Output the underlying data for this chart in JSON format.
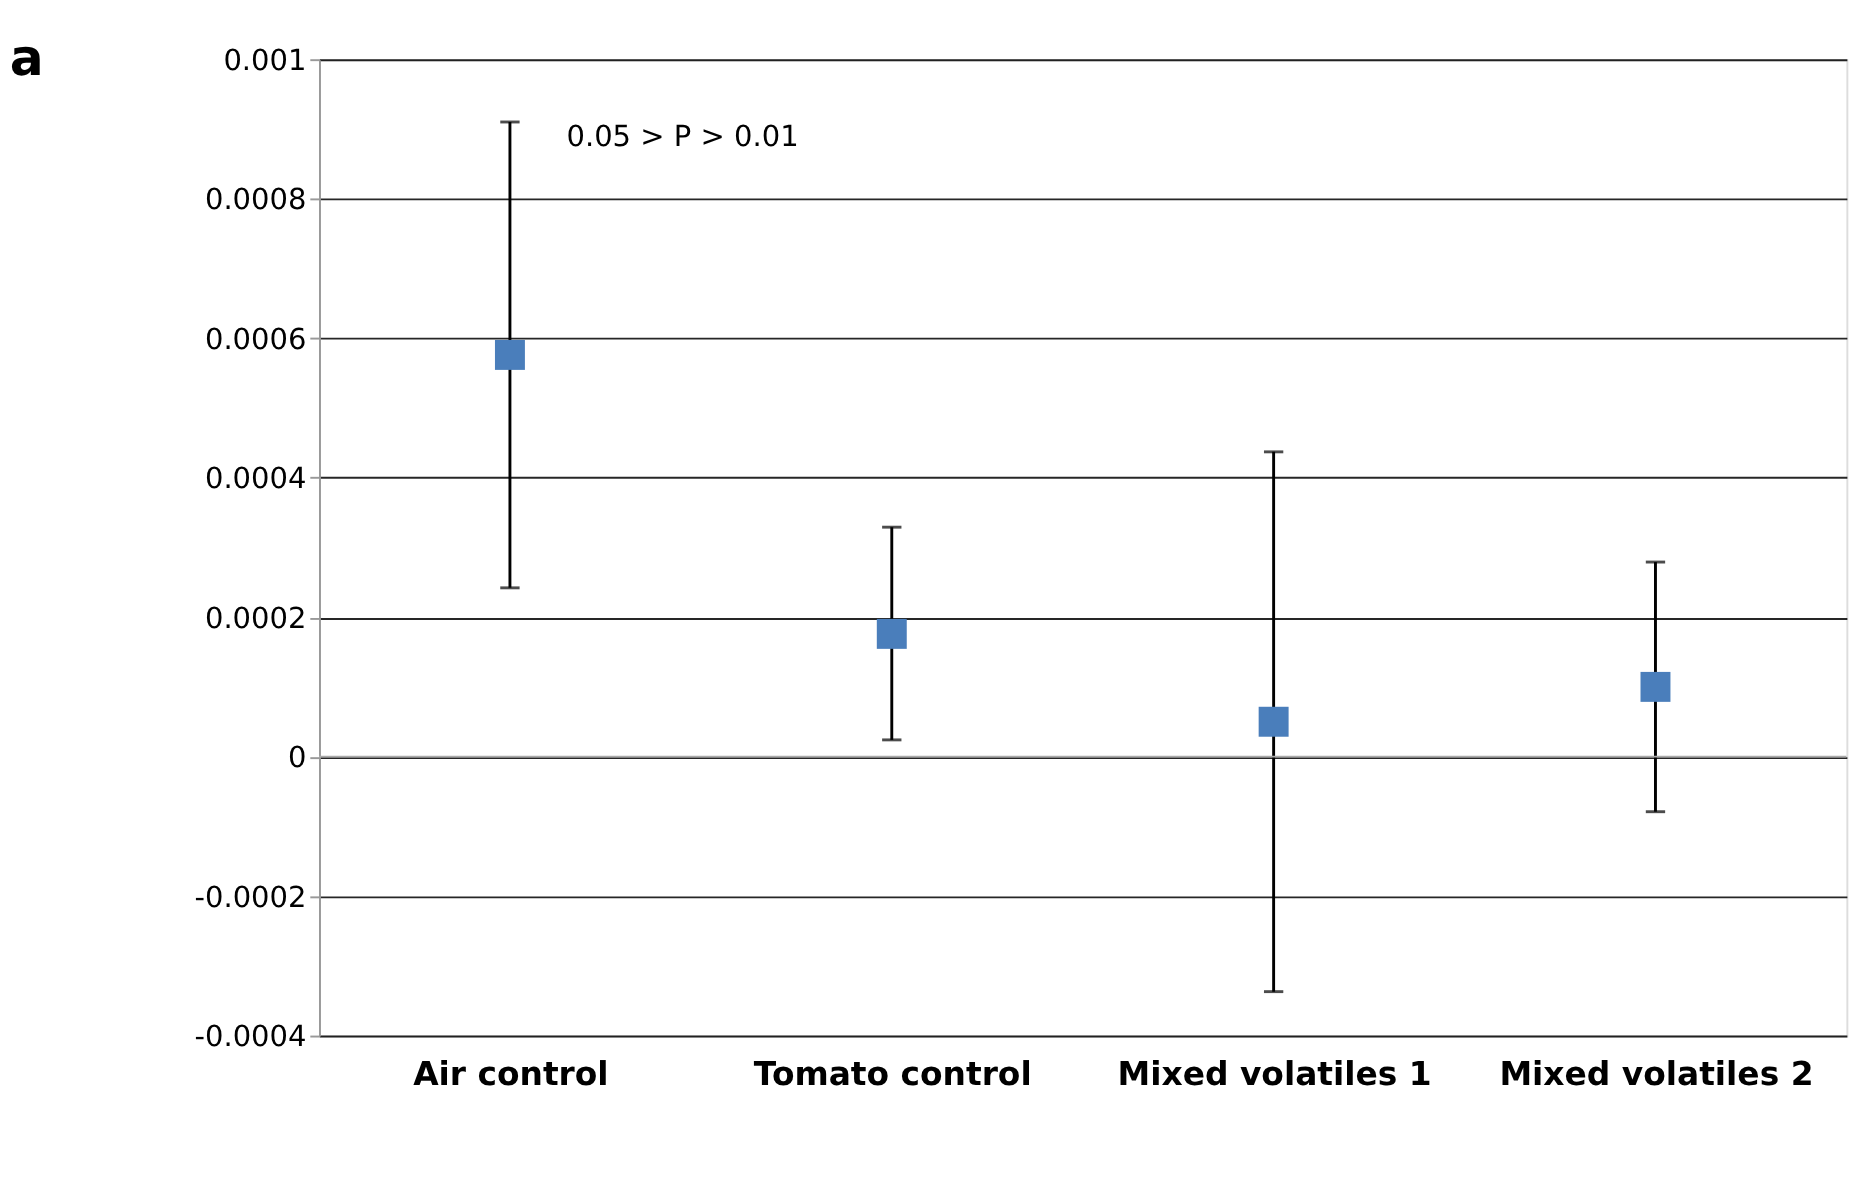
{
  "chart_data": {
    "type": "scatter",
    "title": "a",
    "categories": [
      "Air control",
      "Tomato control",
      "Mixed volatiles 1",
      "Mixed volatiles 2"
    ],
    "series": [
      {
        "color": "#4a7ebb",
        "values": [
          0.000576,
          0.000176,
          5e-05,
          0.0001
        ],
        "errors": [
          [
            0.000242,
            0.00091
          ],
          [
            2.4e-05,
            0.000329
          ],
          [
            -0.000337,
            0.000437
          ],
          [
            -7.9e-05,
            0.000279
          ]
        ]
      }
    ],
    "ylim": [
      -0.0004,
      0.001
    ],
    "yticks": [
      -0.0004,
      -0.0002,
      0,
      0.0002,
      0.0004,
      0.0006,
      0.0008,
      0.001
    ],
    "grid": "y",
    "marker": "square",
    "annotations": [
      "0.05 > P > 0.01"
    ]
  }
}
